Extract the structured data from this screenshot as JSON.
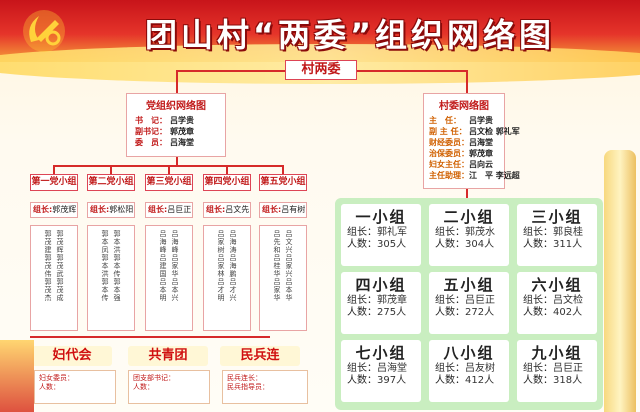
{
  "title": "团山村“两委”组织网络图",
  "village_committee": "村两委",
  "party_org": {
    "title": "党组织网络图",
    "rows": [
      {
        "role": "书　记：",
        "name": "吕学贵"
      },
      {
        "role": "副书记：",
        "name": "郭茂章"
      },
      {
        "role": "委　员：",
        "name": "吕海堂"
      }
    ]
  },
  "village_org": {
    "title": "村委网络图",
    "rows": [
      {
        "role": "主　任：",
        "name": "吕学贵"
      },
      {
        "role": "副 主 任：",
        "name": "吕文检  郭礼军"
      },
      {
        "role": "财经委员：",
        "name": "吕海堂"
      },
      {
        "role": "治保委员：",
        "name": "郭茂章"
      },
      {
        "role": "妇女主任：",
        "name": "吕向云"
      },
      {
        "role": "主任助理：",
        "name": "江　平  李远超"
      }
    ]
  },
  "party_groups": [
    {
      "name": "第一党小组",
      "leader_label": "组长:",
      "leader": "郭茂辉"
    },
    {
      "name": "第二党小组",
      "leader_label": "组长:",
      "leader": "郭松阳"
    },
    {
      "name": "第三党小组",
      "leader_label": "组长:",
      "leader": "吕巨正"
    },
    {
      "name": "第四党小组",
      "leader_label": "组长:",
      "leader": "吕文先"
    },
    {
      "name": "第五党小组",
      "leader_label": "组长:",
      "leader": "吕有树"
    }
  ],
  "member_columns": [
    [
      "郭茂建郭茂伟郭茂杰",
      "郭茂辉郭茂武郭茂成"
    ],
    [
      "郭本凤郭本洪郭本传",
      "郭本洪郭本传郭本强"
    ],
    [
      "吕海峰吕建国吕本明",
      "吕海峰吕家华吕本兴"
    ],
    [
      "吕家树吕家林吕才明",
      "吕海涛吕海鹏吕才兴"
    ],
    [
      "吕先和吕桂华吕家华",
      "吕文兴吕家兴吕本华"
    ]
  ],
  "mass_orgs": [
    {
      "name": "妇代会",
      "line1": "妇女委员：",
      "line2": "人数："
    },
    {
      "name": "共青团",
      "line1": "团支部书记：",
      "line2": "人数："
    },
    {
      "name": "民兵连",
      "line1": "民兵连长：",
      "line2": "民兵指导员："
    }
  ],
  "village_groups": [
    {
      "name": "一小组",
      "leader_label": "组长：",
      "leader": "郭礼军",
      "count_label": "人数：",
      "count": "305人"
    },
    {
      "name": "二小组",
      "leader_label": "组长：",
      "leader": "郭茂水",
      "count_label": "人数：",
      "count": "304人"
    },
    {
      "name": "三小组",
      "leader_label": "组长：",
      "leader": "郭良桂",
      "count_label": "人数：",
      "count": "311人"
    },
    {
      "name": "四小组",
      "leader_label": "组长：",
      "leader": "郭茂章",
      "count_label": "人数：",
      "count": "275人"
    },
    {
      "name": "五小组",
      "leader_label": "组长：",
      "leader": "吕巨正",
      "count_label": "人数：",
      "count": "272人"
    },
    {
      "name": "六小组",
      "leader_label": "组长：",
      "leader": "吕文检",
      "count_label": "人数：",
      "count": "402人"
    },
    {
      "name": "七小组",
      "leader_label": "组长：",
      "leader": "吕海堂",
      "count_label": "人数：",
      "count": "397人"
    },
    {
      "name": "八小组",
      "leader_label": "组长：",
      "leader": "吕友树",
      "count_label": "人数：",
      "count": "412人"
    },
    {
      "name": "九小组",
      "leader_label": "组长：",
      "leader": "吕巨正",
      "count_label": "人数：",
      "count": "318人"
    }
  ],
  "colors": {
    "red": "#c01818",
    "banner": "#e5342a",
    "gold": "#ffd85c",
    "panel": "#c9eec0"
  },
  "icons": [
    "party-emblem-icon"
  ]
}
